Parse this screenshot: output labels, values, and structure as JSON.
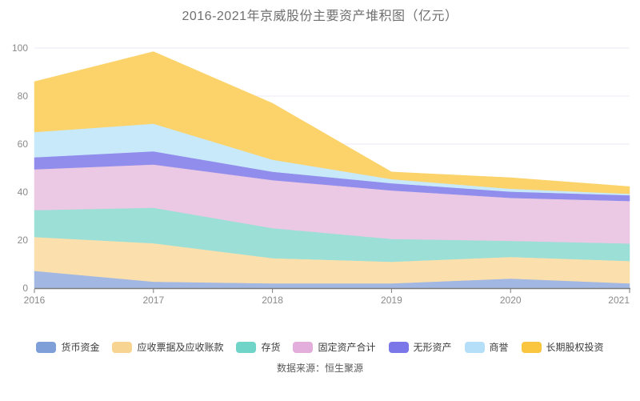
{
  "title": "2016-2021年京威股份主要资产堆积图（亿元）",
  "footer": "数据来源：恒生聚源",
  "axis": {
    "y_ticks": [
      "0",
      "20",
      "40",
      "60",
      "80",
      "100"
    ],
    "x_ticks": [
      "2016",
      "2017",
      "2018",
      "2019",
      "2020",
      "2021"
    ]
  },
  "colors": {
    "grid": "#e8e9f4",
    "axis_line": "#7d7d7d",
    "tick_label": "#8a8a8a"
  },
  "chart_data": {
    "type": "area",
    "stacked": true,
    "title": "2016-2021年京威股份主要资产堆积图（亿元）",
    "xlabel": "",
    "ylabel": "亿元",
    "ylim": [
      0,
      100
    ],
    "grid": true,
    "legend_position": "bottom",
    "categories": [
      "2016",
      "2017",
      "2018",
      "2019",
      "2020",
      "2021"
    ],
    "series": [
      {
        "name": "货币资金",
        "color": "#7e9fd8",
        "area_color": "#a2b8e2",
        "values": [
          7.2,
          2.7,
          2.0,
          2.0,
          4.0,
          2.0
        ]
      },
      {
        "name": "应收票据及应收账款",
        "color": "#f8d492",
        "area_color": "#fbe0ad",
        "values": [
          14.1,
          16.0,
          10.5,
          9.0,
          9.0,
          9.3
        ]
      },
      {
        "name": "存货",
        "color": "#70d5c8",
        "area_color": "#9cdfd7",
        "values": [
          11.2,
          14.8,
          12.5,
          9.5,
          6.7,
          7.3
        ]
      },
      {
        "name": "固定资产合计",
        "color": "#e3aedb",
        "area_color": "#ebc8e3",
        "values": [
          17.0,
          18.0,
          20.0,
          20.2,
          17.9,
          17.7
        ]
      },
      {
        "name": "无形资产",
        "color": "#7b77e9",
        "area_color": "#918dec",
        "values": [
          5.0,
          5.5,
          3.5,
          3.0,
          2.6,
          2.4
        ]
      },
      {
        "name": "商誉",
        "color": "#b5dff8",
        "area_color": "#c8e9fa",
        "values": [
          10.5,
          11.5,
          5.0,
          1.7,
          1.2,
          0.6
        ]
      },
      {
        "name": "长期股权投资",
        "color": "#fac63f",
        "area_color": "#fbd36a",
        "values": [
          21.0,
          30.0,
          23.5,
          3.0,
          4.6,
          3.0
        ]
      }
    ]
  }
}
